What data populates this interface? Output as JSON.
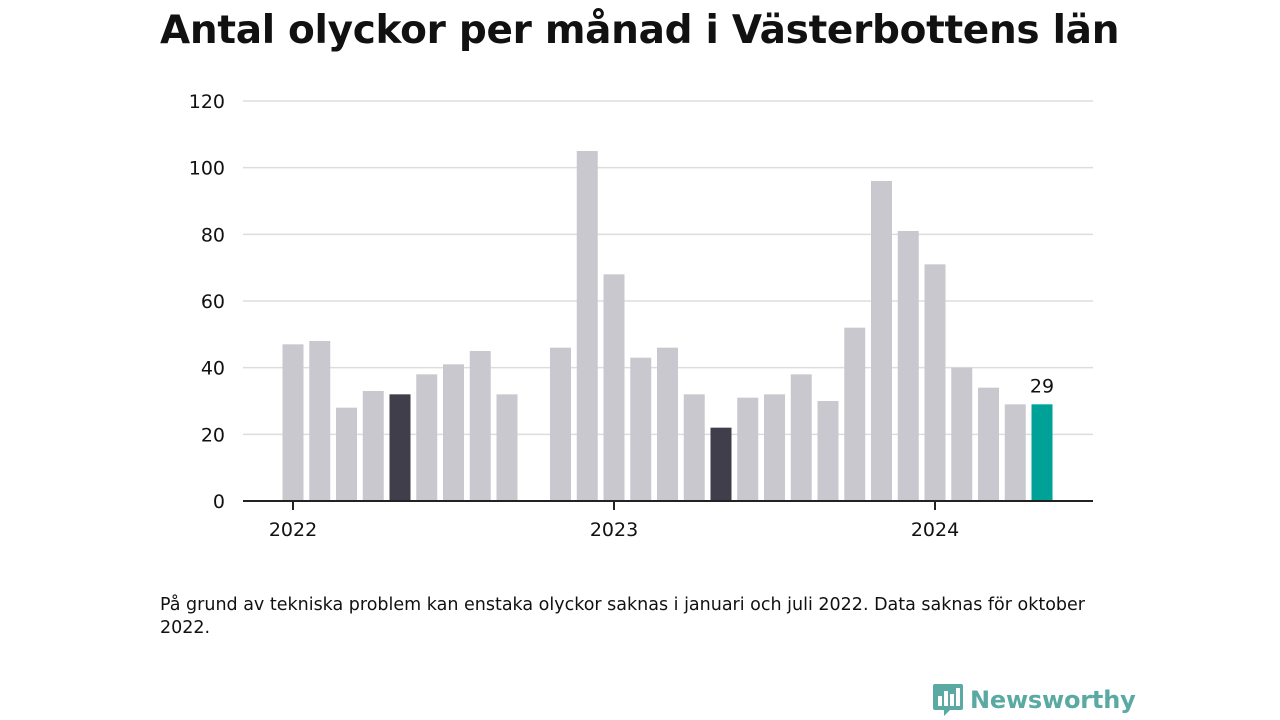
{
  "title": "Antal olyckor per månad i Västerbottens län",
  "note": "På grund av tekniska problem kan enstaka olyckor saknas i januari och juli 2022. Data saknas för oktober 2022.",
  "brand": {
    "name": "Newsworthy",
    "icon": "newsworthy-logo-icon",
    "color": "#5aa9a3"
  },
  "colors": {
    "bar": "#c9c8cf",
    "bar_dark": "#3f3e4a",
    "bar_highlight": "#00a196",
    "grid": "#dddddd",
    "axis": "#222222",
    "text": "#111111"
  },
  "chart_data": {
    "type": "bar",
    "title": "Antal olyckor per månad i Västerbottens län",
    "xlabel": "",
    "ylabel": "",
    "ylim": [
      0,
      120
    ],
    "y_ticks": [
      0,
      20,
      40,
      60,
      80,
      100,
      120
    ],
    "grid": true,
    "x_tick_labels": [
      {
        "label": "2022",
        "at": "2022-01"
      },
      {
        "label": "2023",
        "at": "2023-01"
      },
      {
        "label": "2024",
        "at": "2024-01"
      }
    ],
    "categories": [
      "2022-01",
      "2022-02",
      "2022-03",
      "2022-04",
      "2022-05",
      "2022-06",
      "2022-07",
      "2022-08",
      "2022-09",
      "2022-10",
      "2022-11",
      "2022-12",
      "2023-01",
      "2023-02",
      "2023-03",
      "2023-04",
      "2023-05",
      "2023-06",
      "2023-07",
      "2023-08",
      "2023-09",
      "2023-10",
      "2023-11",
      "2023-12",
      "2024-01",
      "2024-02",
      "2024-03",
      "2024-04",
      "2024-05"
    ],
    "values": [
      47,
      48,
      28,
      33,
      32,
      38,
      41,
      45,
      32,
      null,
      46,
      105,
      68,
      43,
      46,
      32,
      22,
      31,
      32,
      38,
      30,
      52,
      96,
      81,
      71,
      40,
      34,
      29,
      29
    ],
    "dark_categories": [
      "2022-05",
      "2023-05"
    ],
    "highlight_category": "2024-05",
    "data_labels": [
      {
        "category": "2024-05",
        "text": "29"
      }
    ]
  }
}
